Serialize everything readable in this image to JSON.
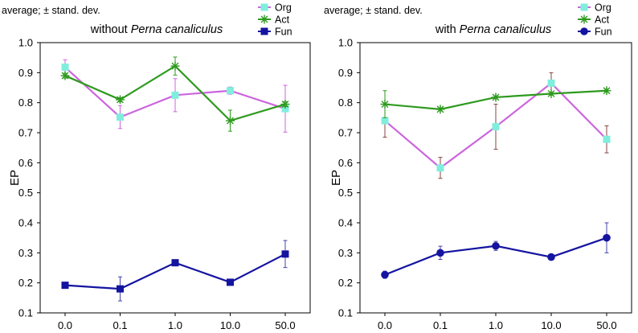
{
  "chart_data": [
    {
      "type": "line",
      "note": "average; ± stand. dev.",
      "title_prefix": "without ",
      "title_species": "Perna canaliculus",
      "ylabel": "EP",
      "xlabel": "",
      "ylim": [
        0.1,
        1.0
      ],
      "yticks": [
        "0.1",
        "0.2",
        "0.3",
        "0.4",
        "0.5",
        "0.6",
        "0.7",
        "0.8",
        "0.9",
        "1.0"
      ],
      "categories": [
        "0.0",
        "0.1",
        "1.0",
        "10.0",
        "50.0"
      ],
      "legend": "top-right",
      "series": [
        {
          "name": "Org",
          "color": "#cc66dd",
          "marker_color": "#80eedd",
          "marker": "square",
          "err_color": "#cc66dd",
          "values": [
            0.918,
            0.752,
            0.825,
            0.84,
            0.78
          ],
          "err": [
            0.025,
            0.038,
            0.055,
            0.012,
            0.078
          ]
        },
        {
          "name": "Act",
          "color": "#2e9a1e",
          "marker_color": "#2e9a1e",
          "marker": "star",
          "err_color": "#2e9a1e",
          "values": [
            0.89,
            0.81,
            0.922,
            0.74,
            0.795
          ],
          "err": [
            0.008,
            0.007,
            0.03,
            0.035,
            0.008
          ]
        },
        {
          "name": "Fun",
          "color": "#1414a0",
          "marker_color": "#1414a0",
          "marker": "square",
          "err_color": "#4444aa",
          "values": [
            0.192,
            0.18,
            0.267,
            0.202,
            0.296
          ],
          "err": [
            0.008,
            0.04,
            0.005,
            0.005,
            0.045
          ]
        }
      ]
    },
    {
      "type": "line",
      "note": "average; ± stand. dev.",
      "title_prefix": "with ",
      "title_species": "Perna canaliculus",
      "ylabel": "EP",
      "xlabel": "",
      "ylim": [
        0.1,
        1.0
      ],
      "yticks": [
        "0.1",
        "0.2",
        "0.3",
        "0.4",
        "0.5",
        "0.6",
        "0.7",
        "0.8",
        "0.9",
        "1.0"
      ],
      "categories": [
        "0.0",
        "0.1",
        "1.0",
        "10.0",
        "50.0"
      ],
      "legend": "top-right",
      "series": [
        {
          "name": "Org",
          "color": "#cc66dd",
          "marker_color": "#80eedd",
          "marker": "square",
          "err_color": "#884444",
          "values": [
            0.74,
            0.583,
            0.72,
            0.865,
            0.678
          ],
          "err": [
            0.055,
            0.035,
            0.075,
            0.035,
            0.045
          ]
        },
        {
          "name": "Act",
          "color": "#2e9a1e",
          "marker_color": "#2e9a1e",
          "marker": "star",
          "err_color": "#2e9a1e",
          "values": [
            0.795,
            0.778,
            0.818,
            0.83,
            0.84
          ],
          "err": [
            0.045,
            0.005,
            0.005,
            0.005,
            0.005
          ]
        },
        {
          "name": "Fun",
          "color": "#1414a0",
          "marker_color": "#1414a0",
          "marker": "circle",
          "err_color": "#4444aa",
          "values": [
            0.227,
            0.3,
            0.323,
            0.286,
            0.35
          ],
          "err": [
            0.012,
            0.022,
            0.015,
            0.005,
            0.05
          ]
        }
      ]
    }
  ]
}
